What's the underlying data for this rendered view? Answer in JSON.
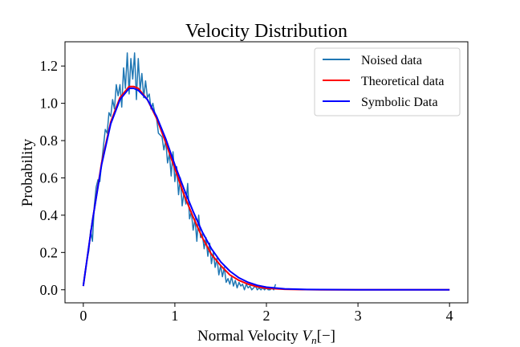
{
  "chart_data": {
    "type": "line",
    "title": "Velocity Distribution",
    "xlabel_main": "Normal Velocity ",
    "xlabel_sym": "V",
    "xlabel_sub": "n",
    "xlabel_unit": "[−]",
    "ylabel": "Probability",
    "xlim": [
      -0.2,
      4.2
    ],
    "ylim": [
      -0.07,
      1.33
    ],
    "xticks": [
      0,
      1,
      2,
      3,
      4
    ],
    "yticks": [
      0.0,
      0.2,
      0.4,
      0.6,
      0.8,
      1.0,
      1.2
    ],
    "xtick_labels": [
      "0",
      "1",
      "2",
      "3",
      "4"
    ],
    "ytick_labels": [
      "0.0",
      "0.2",
      "0.4",
      "0.6",
      "0.8",
      "1.0",
      "1.2"
    ],
    "grid": false,
    "legend_position": "top-right",
    "colors": {
      "noised": "#1f77b4",
      "theoretical": "#ff0000",
      "symbolic": "#0000ff"
    },
    "series": [
      {
        "name": "Noised data",
        "key": "noised",
        "x": [
          0.0,
          0.02,
          0.04,
          0.06,
          0.08,
          0.1,
          0.12,
          0.14,
          0.16,
          0.18,
          0.2,
          0.22,
          0.24,
          0.26,
          0.28,
          0.3,
          0.32,
          0.34,
          0.36,
          0.38,
          0.4,
          0.42,
          0.44,
          0.46,
          0.48,
          0.5,
          0.52,
          0.54,
          0.56,
          0.58,
          0.6,
          0.62,
          0.64,
          0.66,
          0.68,
          0.7,
          0.72,
          0.74,
          0.76,
          0.78,
          0.8,
          0.82,
          0.84,
          0.86,
          0.88,
          0.9,
          0.92,
          0.94,
          0.96,
          0.98,
          1.0,
          1.02,
          1.04,
          1.06,
          1.08,
          1.1,
          1.12,
          1.14,
          1.16,
          1.18,
          1.2,
          1.22,
          1.24,
          1.26,
          1.28,
          1.3,
          1.32,
          1.34,
          1.36,
          1.38,
          1.4,
          1.42,
          1.44,
          1.46,
          1.48,
          1.5,
          1.52,
          1.54,
          1.56,
          1.58,
          1.6,
          1.62,
          1.64,
          1.66,
          1.68,
          1.7,
          1.72,
          1.74,
          1.76,
          1.78,
          1.8,
          1.82,
          1.84,
          1.86,
          1.88,
          1.9,
          1.92,
          1.94,
          1.96,
          1.98,
          2.0,
          2.02,
          2.04,
          2.06,
          2.08,
          2.1
        ],
        "y": [
          0.03,
          0.1,
          0.16,
          0.21,
          0.32,
          0.26,
          0.45,
          0.55,
          0.59,
          0.58,
          0.68,
          0.77,
          0.86,
          0.84,
          0.95,
          0.93,
          1.02,
          0.97,
          1.1,
          1.04,
          1.1,
          0.98,
          1.19,
          1.08,
          1.27,
          1.05,
          1.24,
          1.13,
          1.27,
          1.02,
          1.24,
          1.07,
          1.16,
          1.03,
          1.12,
          1.03,
          1.05,
          0.97,
          1.0,
          0.95,
          0.92,
          0.84,
          0.83,
          0.82,
          0.75,
          0.8,
          0.68,
          0.73,
          0.61,
          0.74,
          0.58,
          0.66,
          0.51,
          0.6,
          0.45,
          0.52,
          0.46,
          0.57,
          0.38,
          0.42,
          0.32,
          0.38,
          0.26,
          0.4,
          0.28,
          0.3,
          0.22,
          0.28,
          0.18,
          0.25,
          0.14,
          0.2,
          0.12,
          0.17,
          0.08,
          0.13,
          0.07,
          0.12,
          0.04,
          0.06,
          0.03,
          0.07,
          0.02,
          0.05,
          0.01,
          0.04,
          0.02,
          0.03,
          0.0,
          0.03,
          0.01,
          0.02,
          0.0,
          0.01,
          0.02,
          0.0,
          0.01,
          0.0,
          0.01,
          0.0,
          0.01,
          0.0,
          0.0,
          0.01,
          0.0,
          0.03
        ]
      },
      {
        "name": "Theoretical data",
        "key": "theoretical",
        "x": [
          0.0,
          0.1,
          0.2,
          0.3,
          0.4,
          0.5,
          0.55,
          0.6,
          0.7,
          0.8,
          0.9,
          1.0,
          1.1,
          1.2,
          1.3,
          1.4,
          1.5,
          1.6,
          1.7,
          1.8,
          1.9,
          2.0,
          2.2,
          2.4,
          2.6,
          3.0,
          3.5,
          4.0
        ],
        "y": [
          0.02,
          0.37,
          0.68,
          0.9,
          1.03,
          1.09,
          1.09,
          1.08,
          1.02,
          0.92,
          0.79,
          0.65,
          0.51,
          0.39,
          0.28,
          0.19,
          0.13,
          0.08,
          0.05,
          0.03,
          0.016,
          0.008,
          0.003,
          0.001,
          0.0,
          0.0,
          0.0,
          0.0
        ]
      },
      {
        "name": "Symbolic Data",
        "key": "symbolic",
        "x": [
          0.0,
          0.1,
          0.2,
          0.3,
          0.4,
          0.5,
          0.55,
          0.6,
          0.7,
          0.8,
          0.9,
          1.0,
          1.1,
          1.2,
          1.3,
          1.4,
          1.5,
          1.6,
          1.7,
          1.8,
          1.9,
          2.0,
          2.2,
          2.4,
          2.6,
          3.0,
          3.5,
          4.0
        ],
        "y": [
          0.02,
          0.37,
          0.67,
          0.89,
          1.02,
          1.08,
          1.08,
          1.07,
          1.02,
          0.93,
          0.81,
          0.67,
          0.54,
          0.42,
          0.31,
          0.22,
          0.15,
          0.1,
          0.064,
          0.04,
          0.024,
          0.014,
          0.005,
          0.002,
          0.001,
          0.0,
          0.0,
          0.0
        ]
      }
    ]
  }
}
